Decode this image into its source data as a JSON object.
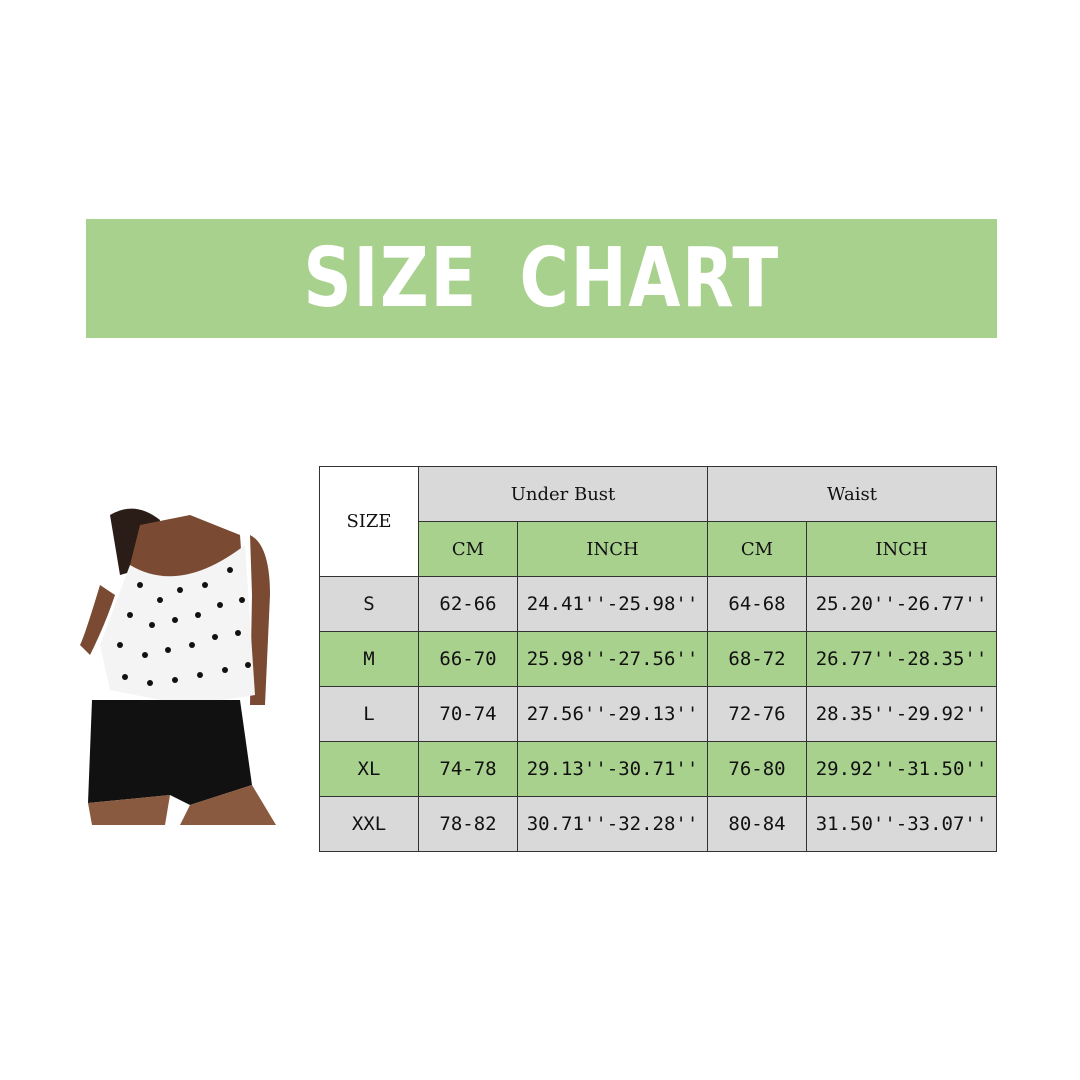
{
  "title": "SIZE CHART",
  "colors": {
    "banner": "#a9d18e",
    "row_gray": "#d9d9d9",
    "row_green": "#a9d18e"
  },
  "table": {
    "size_header": "SIZE",
    "groups": [
      "Under Bust",
      "Waist"
    ],
    "sub": [
      "CM",
      "INCH",
      "CM",
      "INCH"
    ],
    "rows": [
      [
        "S",
        "62-66",
        "24.41''-25.98''",
        "64-68",
        "25.20''-26.77''"
      ],
      [
        "M",
        "66-70",
        "25.98''-27.56''",
        "68-72",
        "26.77''-28.35''"
      ],
      [
        "L",
        "70-74",
        "27.56''-29.13''",
        "72-76",
        "28.35''-29.92''"
      ],
      [
        "XL",
        "74-78",
        "29.13''-30.71''",
        "76-80",
        "29.92''-31.50''"
      ],
      [
        "XXL",
        "78-82",
        "30.71''-32.28''",
        "80-84",
        "31.50''-33.07''"
      ]
    ]
  }
}
